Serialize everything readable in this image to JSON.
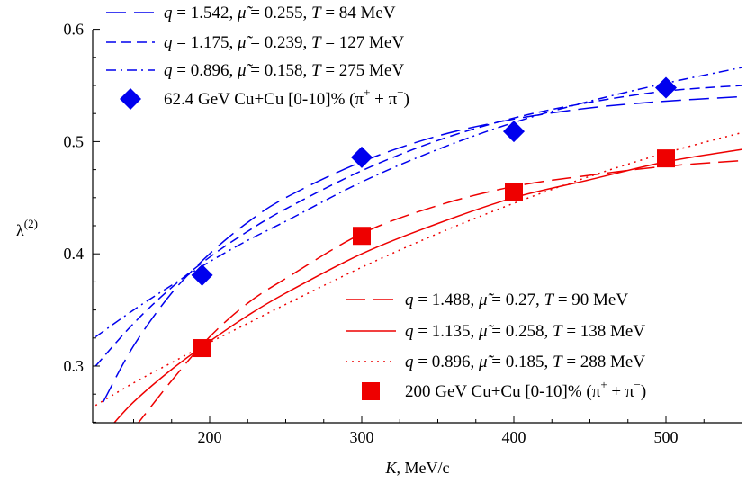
{
  "chart_data": {
    "type": "line",
    "xlabel_var": "K",
    "xlabel_unit": "MeV/c",
    "ylabel_base": "λ",
    "ylabel_sup": "(2)",
    "xlim": [
      125,
      550
    ],
    "ylim": [
      0.25,
      0.6
    ],
    "xticks": [
      200,
      300,
      400,
      500
    ],
    "xtick_labels": [
      "200",
      "300",
      "400",
      "500"
    ],
    "yticks": [
      0.3,
      0.4,
      0.5,
      0.6
    ],
    "ytick_labels": [
      "0.3",
      "0.4",
      "0.5",
      "0.6"
    ],
    "colors": {
      "blue": "#0000ee",
      "red": "#ee0000",
      "axis": "#000000"
    },
    "groups": [
      {
        "name": "62.4 GeV Cu+Cu",
        "color": "#0000ee",
        "legend_position": "top-left",
        "marker": "diamond",
        "data_label": "62.4 GeV Cu+Cu [0-10]% (π+ + π−)",
        "data_label_main": "62.4 GeV Cu+Cu [0-10]% (π",
        "data_label_sup1": "+",
        "data_label_mid": " + π",
        "data_label_sup2": "−",
        "data_label_end": ")",
        "points": {
          "x": [
            195,
            300,
            400,
            500
          ],
          "y": [
            0.381,
            0.486,
            0.509,
            0.548
          ]
        },
        "curves": [
          {
            "label": "q = 1.542, μ̃ = 0.255, T = 84 MeV",
            "q": "1.542",
            "mu": "0.255",
            "T": "84",
            "dash": "long-dash",
            "x": [
              130,
              150,
              175,
              200,
              225,
              250,
              300,
              350,
              400,
              450,
              500,
              550
            ],
            "y": [
              0.268,
              0.318,
              0.365,
              0.4,
              0.428,
              0.45,
              0.482,
              0.505,
              0.52,
              0.53,
              0.536,
              0.54
            ]
          },
          {
            "label": "q = 1.175, μ̃ = 0.239, T = 127 MeV",
            "q": "1.175",
            "mu": "0.239",
            "T": "127",
            "dash": "dashed",
            "x": [
              125,
              150,
              175,
              200,
              225,
              250,
              300,
              350,
              400,
              450,
              500,
              550
            ],
            "y": [
              0.3,
              0.338,
              0.37,
              0.397,
              0.42,
              0.44,
              0.474,
              0.501,
              0.521,
              0.535,
              0.545,
              0.55
            ]
          },
          {
            "label": "q = 0.896, μ̃ = 0.158, T = 275 MeV",
            "q": "0.896",
            "mu": "0.158",
            "T": "275",
            "dash": "dash-dot",
            "x": [
              125,
              150,
              175,
              200,
              225,
              250,
              300,
              350,
              400,
              450,
              500,
              550
            ],
            "y": [
              0.326,
              0.35,
              0.372,
              0.393,
              0.412,
              0.429,
              0.464,
              0.493,
              0.517,
              0.536,
              0.552,
              0.566
            ]
          }
        ]
      },
      {
        "name": "200 GeV Cu+Cu",
        "color": "#ee0000",
        "legend_position": "bottom-right",
        "marker": "square",
        "data_label": "200 GeV Cu+Cu [0-10]% (π+ + π−)",
        "data_label_main": "200 GeV Cu+Cu [0-10]% (π",
        "data_label_sup1": "+",
        "data_label_mid": " + π",
        "data_label_sup2": "−",
        "data_label_end": ")",
        "points": {
          "x": [
            195,
            300,
            400,
            500
          ],
          "y": [
            0.316,
            0.416,
            0.455,
            0.485
          ]
        },
        "curves": [
          {
            "label": "q = 1.488, μ̃ = 0.27, T = 90 MeV",
            "q": "1.488",
            "mu": "0.27",
            "T": "90",
            "dash": "long-dash",
            "x": [
              150,
              175,
              200,
              225,
              250,
              300,
              350,
              400,
              450,
              500,
              550
            ],
            "y": [
              0.244,
              0.287,
              0.326,
              0.356,
              0.378,
              0.418,
              0.443,
              0.46,
              0.47,
              0.478,
              0.483
            ]
          },
          {
            "label": "q = 1.135, μ̃ = 0.258, T = 138 MeV",
            "q": "1.135",
            "mu": "0.258",
            "T": "138",
            "dash": "solid",
            "x": [
              135,
              150,
              175,
              200,
              225,
              250,
              300,
              350,
              400,
              450,
              500,
              550
            ],
            "y": [
              0.246,
              0.268,
              0.297,
              0.322,
              0.345,
              0.365,
              0.4,
              0.427,
              0.45,
              0.466,
              0.482,
              0.493
            ]
          },
          {
            "label": "q = 0.896, μ̃ = 0.185, T = 288 MeV",
            "q": "0.896",
            "mu": "0.185",
            "T": "288",
            "dash": "dotted",
            "x": [
              125,
              150,
              175,
              200,
              225,
              250,
              300,
              350,
              400,
              450,
              500,
              550
            ],
            "y": [
              0.265,
              0.285,
              0.303,
              0.321,
              0.338,
              0.355,
              0.388,
              0.418,
              0.445,
              0.469,
              0.49,
              0.508
            ]
          }
        ]
      }
    ]
  }
}
